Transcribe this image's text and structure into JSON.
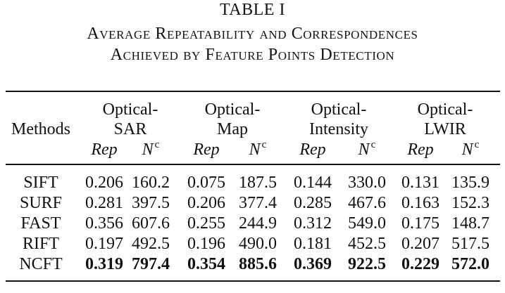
{
  "caption": {
    "label": "TABLE I",
    "title_line1": "Average Repeatability and Correspondences",
    "title_line2": "Achieved by Feature Points Detection"
  },
  "table": {
    "method_header": "Methods",
    "groups": [
      {
        "line1": "Optical-",
        "line2": "SAR"
      },
      {
        "line1": "Optical-",
        "line2": "Map"
      },
      {
        "line1": "Optical-",
        "line2": "Intensity"
      },
      {
        "line1": "Optical-",
        "line2": "LWIR"
      }
    ],
    "sub_rep": "Rep",
    "sub_n": "N",
    "sub_n_sup": "c",
    "rows": [
      {
        "method": "SIFT",
        "values": [
          "0.206",
          "160.2",
          "0.075",
          "187.5",
          "0.144",
          "330.0",
          "0.131",
          "135.9"
        ],
        "bold": false
      },
      {
        "method": "SURF",
        "values": [
          "0.281",
          "397.5",
          "0.206",
          "377.4",
          "0.285",
          "467.6",
          "0.163",
          "152.3"
        ],
        "bold": false
      },
      {
        "method": "FAST",
        "values": [
          "0.356",
          "607.6",
          "0.255",
          "244.9",
          "0.312",
          "549.0",
          "0.175",
          "148.7"
        ],
        "bold": false
      },
      {
        "method": "RIFT",
        "values": [
          "0.197",
          "492.5",
          "0.196",
          "490.0",
          "0.181",
          "452.5",
          "0.207",
          "517.5"
        ],
        "bold": false
      },
      {
        "method": "NCFT",
        "values": [
          "0.319",
          "797.4",
          "0.354",
          "885.6",
          "0.369",
          "922.5",
          "0.229",
          "572.0"
        ],
        "bold": true
      }
    ]
  }
}
